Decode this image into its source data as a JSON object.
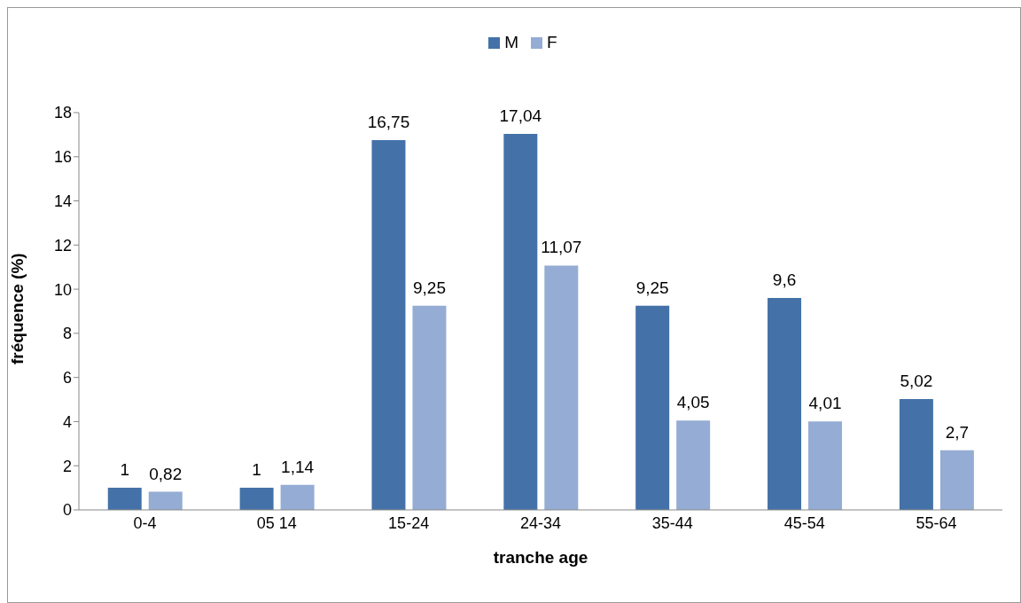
{
  "chart_data": {
    "type": "bar",
    "xlabel": "tranche age",
    "ylabel": "fréquence (%)",
    "categories": [
      "0-4",
      "05 14",
      "15-24",
      "24-34",
      "35-44",
      "45-54",
      "55-64"
    ],
    "series": [
      {
        "name": "M",
        "color": "#4472a8",
        "values": [
          1,
          1,
          16.75,
          17.04,
          9.25,
          9.6,
          5.02
        ],
        "value_labels": [
          "1",
          "1",
          "16,75",
          "17,04",
          "9,25",
          "9,6",
          "5,02"
        ]
      },
      {
        "name": "F",
        "color": "#95acd4",
        "values": [
          0.82,
          1.14,
          9.25,
          11.07,
          4.05,
          4.01,
          2.7
        ],
        "value_labels": [
          "0,82",
          "1,14",
          "9,25",
          "11,07",
          "4,05",
          "4,01",
          "2,7"
        ]
      }
    ],
    "ylim": [
      0,
      18
    ],
    "yticks": [
      0,
      2,
      4,
      6,
      8,
      10,
      12,
      14,
      16,
      18
    ],
    "grid": false,
    "legend": "top"
  }
}
